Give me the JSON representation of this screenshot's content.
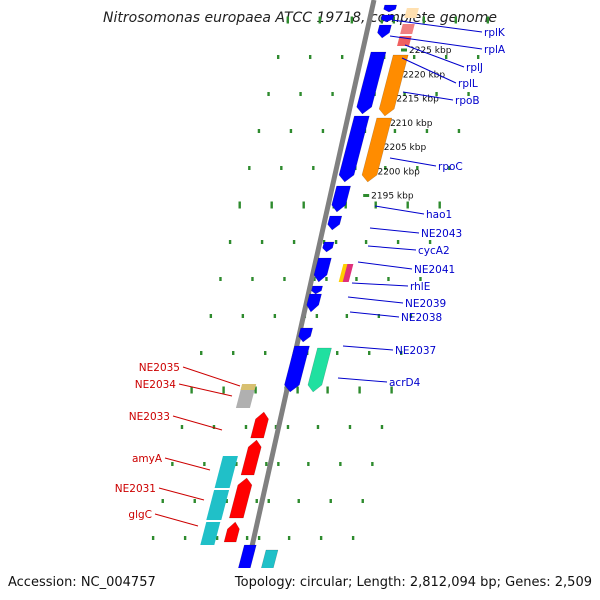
{
  "title": "Nitrosomonas europaea ATCC 19718, complete genome",
  "footer": {
    "accession": "Accession: NC_004757",
    "topology": "Topology: circular; Length: 2,812,094 bp; Genes: 2,509"
  },
  "colors": {
    "backbone": "#808080",
    "dots": "#2e8b2e",
    "forward_label": "#0000cc",
    "reverse_label": "#cc0000",
    "blue": "#0000ff",
    "orange": "#ff8c00",
    "red": "#ff0000",
    "cyan": "#20c0c8",
    "green": "#20e0a0",
    "gray": "#b0b0b0"
  },
  "kbp_markers": [
    {
      "label": "2225 kbp",
      "kb": 2225
    },
    {
      "label": "2220 kbp",
      "kb": 2220
    },
    {
      "label": "2215 kbp",
      "kb": 2215
    },
    {
      "label": "2210 kbp",
      "kb": 2210
    },
    {
      "label": "2205 kbp",
      "kb": 2205
    },
    {
      "label": "2200 kbp",
      "kb": 2200
    },
    {
      "label": "2195 kbp",
      "kb": 2195
    }
  ],
  "forward_genes": [
    {
      "name": "rplK"
    },
    {
      "name": "rplA"
    },
    {
      "name": "rplJ"
    },
    {
      "name": "rplL"
    },
    {
      "name": "rpoB"
    },
    {
      "name": "rpoC"
    },
    {
      "name": "hao1"
    },
    {
      "name": "NE2043"
    },
    {
      "name": "cycA2"
    },
    {
      "name": "NE2041"
    },
    {
      "name": "rhlE"
    },
    {
      "name": "NE2039"
    },
    {
      "name": "NE2038"
    },
    {
      "name": "NE2037"
    },
    {
      "name": "acrD4"
    }
  ],
  "reverse_genes": [
    {
      "name": "NE2035"
    },
    {
      "name": "NE2034"
    },
    {
      "name": "NE2033"
    },
    {
      "name": "amyA"
    },
    {
      "name": "NE2031"
    },
    {
      "name": "glgC"
    }
  ]
}
